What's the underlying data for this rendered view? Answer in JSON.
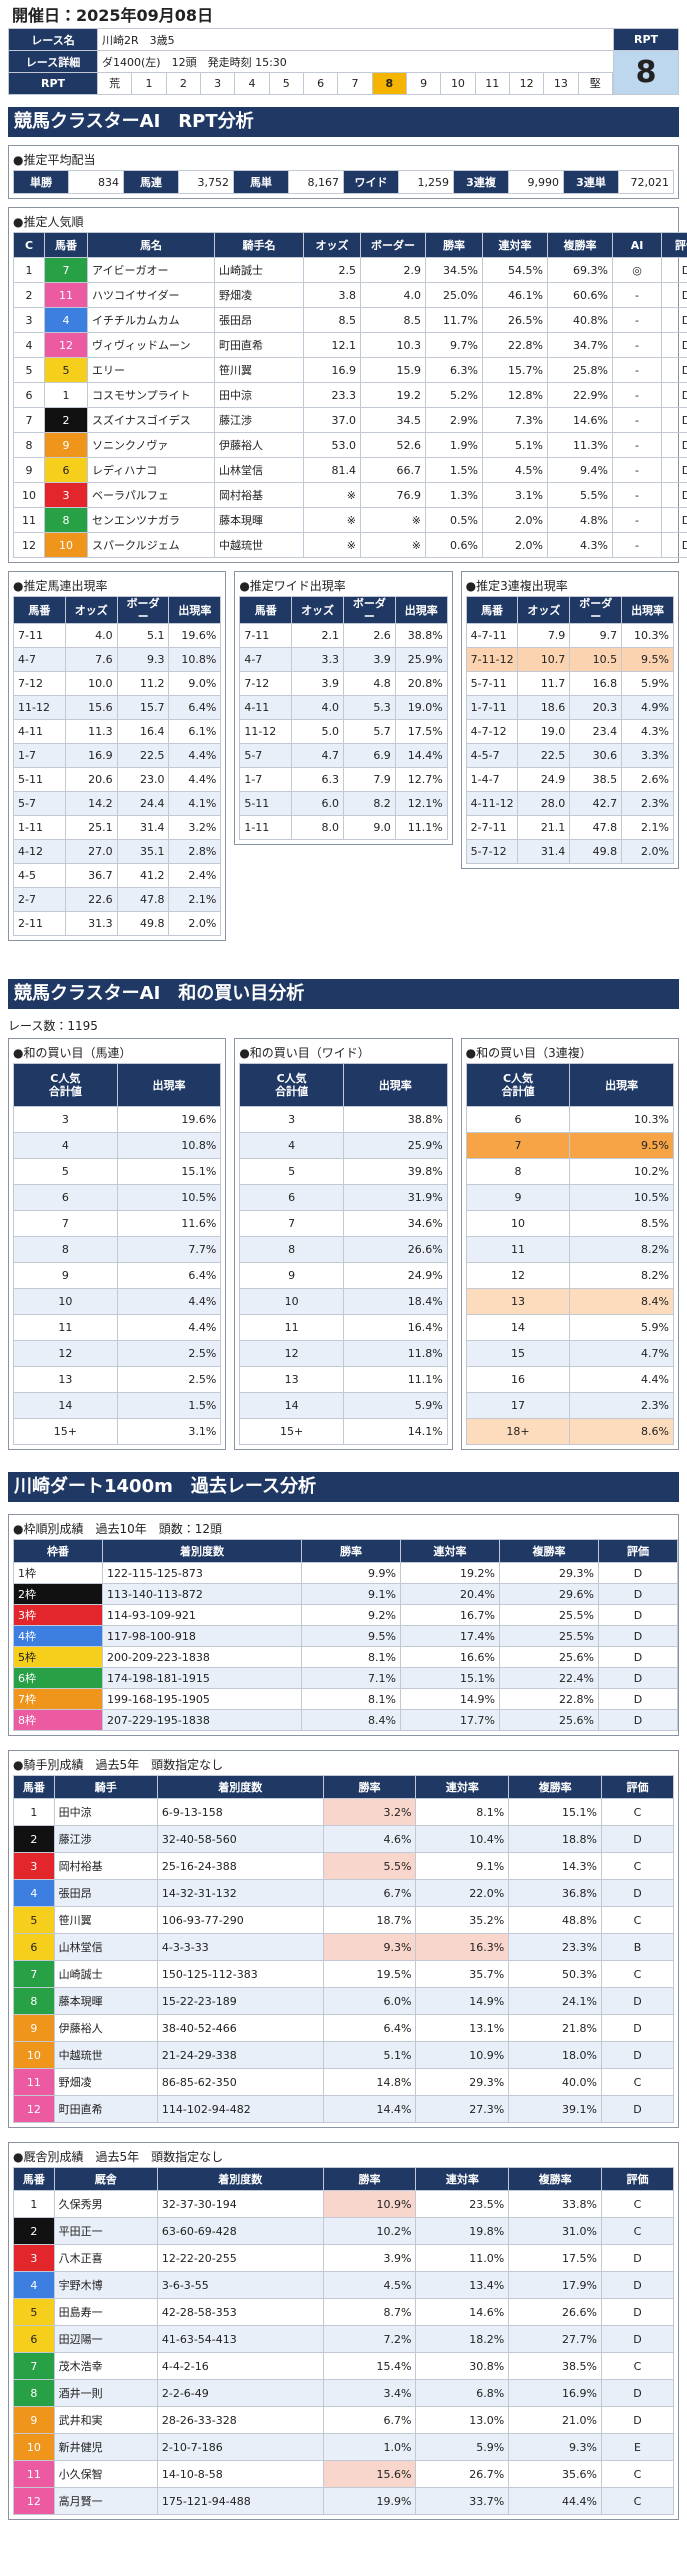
{
  "header": {
    "title": "開催日：2025年09月08日"
  },
  "race_info": {
    "labels": [
      "レース名",
      "レース詳細",
      "RPT"
    ],
    "race_name": "川崎2R　3歳5",
    "race_detail": "ダ1400(左)　12頭　発走時刻 15:30",
    "rpt_title": "RPT",
    "rpt_value": 8,
    "rpt_scale": [
      "荒",
      1,
      2,
      3,
      4,
      5,
      6,
      7,
      8,
      9,
      10,
      11,
      12,
      13,
      "堅"
    ]
  },
  "frame_colors": [
    "#ffffff",
    "#111111",
    "#e3262b",
    "#3d7fe0",
    "#f5cf1b",
    "#27a046",
    "#f0951c",
    "#ec5aa2"
  ],
  "rpt_analysis": {
    "title": "競馬クラスターAI　RPT分析",
    "payout": {
      "title": "●推定平均配当",
      "items": [
        {
          "label": "単勝",
          "value": "834"
        },
        {
          "label": "馬連",
          "value": "3,752"
        },
        {
          "label": "馬単",
          "value": "8,167"
        },
        {
          "label": "ワイド",
          "value": "1,259"
        },
        {
          "label": "3連複",
          "value": "9,990"
        },
        {
          "label": "3連単",
          "value": "72,021"
        }
      ]
    },
    "popularity": {
      "title": "●推定人気順",
      "columns": [
        "C",
        "馬番",
        "馬名",
        "騎手名",
        "オッズ",
        "ボーダー",
        "勝率",
        "連対率",
        "複勝率",
        "AI",
        "評価"
      ],
      "rows": [
        [
          1,
          7,
          "アイビーガオー",
          "山崎誠士",
          "2.5",
          "2.9",
          "34.5%",
          "54.5%",
          "69.3%",
          "◎",
          "D"
        ],
        [
          2,
          11,
          "ハツコイサイダー",
          "野畑凌",
          "3.8",
          "4.0",
          "25.0%",
          "46.1%",
          "60.6%",
          "-",
          "D"
        ],
        [
          3,
          4,
          "イチチルカムカム",
          "張田昂",
          "8.5",
          "8.5",
          "11.7%",
          "26.5%",
          "40.8%",
          "-",
          "D"
        ],
        [
          4,
          12,
          "ヴィヴィッドムーン",
          "町田直希",
          "12.1",
          "10.3",
          "9.7%",
          "22.8%",
          "34.7%",
          "-",
          "D"
        ],
        [
          5,
          5,
          "エリー",
          "笹川翼",
          "16.9",
          "15.9",
          "6.3%",
          "15.7%",
          "25.8%",
          "-",
          "D"
        ],
        [
          6,
          1,
          "コスモサンプライト",
          "田中涼",
          "23.3",
          "19.2",
          "5.2%",
          "12.8%",
          "22.9%",
          "-",
          "D"
        ],
        [
          7,
          2,
          "スズイナスゴイデス",
          "藤江渉",
          "37.0",
          "34.5",
          "2.9%",
          "7.3%",
          "14.6%",
          "-",
          "D"
        ],
        [
          8,
          9,
          "ソニンクノヴァ",
          "伊藤裕人",
          "53.0",
          "52.6",
          "1.9%",
          "5.1%",
          "11.3%",
          "-",
          "D"
        ],
        [
          9,
          6,
          "レディハナコ",
          "山林堂信",
          "81.4",
          "66.7",
          "1.5%",
          "4.5%",
          "9.4%",
          "-",
          "D"
        ],
        [
          10,
          3,
          "ベーラパルフェ",
          "岡村裕基",
          "※",
          "76.9",
          "1.3%",
          "3.1%",
          "5.5%",
          "-",
          "D"
        ],
        [
          11,
          8,
          "センエンツナガラ",
          "藤本現暉",
          "※",
          "※",
          "0.5%",
          "2.0%",
          "4.8%",
          "-",
          "D"
        ],
        [
          12,
          10,
          "スパークルジェム",
          "中越琉世",
          "※",
          "※",
          "0.6%",
          "2.0%",
          "4.3%",
          "-",
          "D"
        ]
      ]
    },
    "umaren": {
      "title": "●推定馬連出現率",
      "columns": [
        "馬番",
        "オッズ",
        "ボーダー",
        "出現率"
      ],
      "rows": [
        [
          "7-11",
          "4.0",
          "5.1",
          "19.6%"
        ],
        [
          "4-7",
          "7.6",
          "9.3",
          "10.8%"
        ],
        [
          "7-12",
          "10.0",
          "11.2",
          "9.0%"
        ],
        [
          "11-12",
          "15.6",
          "15.7",
          "6.4%"
        ],
        [
          "4-11",
          "11.3",
          "16.4",
          "6.1%"
        ],
        [
          "1-7",
          "16.9",
          "22.5",
          "4.4%"
        ],
        [
          "5-11",
          "20.6",
          "23.0",
          "4.4%"
        ],
        [
          "5-7",
          "14.2",
          "24.4",
          "4.1%"
        ],
        [
          "1-11",
          "25.1",
          "31.4",
          "3.2%"
        ],
        [
          "4-12",
          "27.0",
          "35.1",
          "2.8%"
        ],
        [
          "4-5",
          "36.7",
          "41.2",
          "2.4%"
        ],
        [
          "2-7",
          "22.6",
          "47.8",
          "2.1%"
        ],
        [
          "2-11",
          "31.3",
          "49.8",
          "2.0%"
        ]
      ]
    },
    "wide": {
      "title": "●推定ワイド出現率",
      "columns": [
        "馬番",
        "オッズ",
        "ボーダー",
        "出現率"
      ],
      "rows": [
        [
          "7-11",
          "2.1",
          "2.6",
          "38.8%"
        ],
        [
          "4-7",
          "3.3",
          "3.9",
          "25.9%"
        ],
        [
          "7-12",
          "3.9",
          "4.8",
          "20.8%"
        ],
        [
          "4-11",
          "4.0",
          "5.3",
          "19.0%"
        ],
        [
          "11-12",
          "5.0",
          "5.7",
          "17.5%"
        ],
        [
          "5-7",
          "4.7",
          "6.9",
          "14.4%"
        ],
        [
          "1-7",
          "6.3",
          "7.9",
          "12.7%"
        ],
        [
          "5-11",
          "6.0",
          "8.2",
          "12.1%"
        ],
        [
          "1-11",
          "8.0",
          "9.0",
          "11.1%"
        ]
      ]
    },
    "sanrenpuku": {
      "title": "●推定3連複出現率",
      "columns": [
        "馬番",
        "オッズ",
        "ボーダー",
        "出現率"
      ],
      "rows": [
        [
          "4-7-11",
          "7.9",
          "9.7",
          "10.3%"
        ],
        [
          "7-11-12",
          "10.7",
          "10.5",
          "9.5%"
        ],
        [
          "5-7-11",
          "11.7",
          "16.8",
          "5.9%"
        ],
        [
          "1-7-11",
          "18.6",
          "20.3",
          "4.9%"
        ],
        [
          "4-7-12",
          "19.0",
          "23.4",
          "4.3%"
        ],
        [
          "4-5-7",
          "22.5",
          "30.6",
          "3.3%"
        ],
        [
          "1-4-7",
          "24.9",
          "38.5",
          "2.6%"
        ],
        [
          "4-11-12",
          "28.0",
          "42.7",
          "2.3%"
        ],
        [
          "2-7-11",
          "21.1",
          "47.8",
          "2.1%"
        ],
        [
          "5-7-12",
          "31.4",
          "49.8",
          "2.0%"
        ]
      ],
      "highlights": [
        [
          1,
          0,
          "#fbd3b0"
        ],
        [
          1,
          1,
          "#fbd3b0"
        ],
        [
          1,
          2,
          "#fbd3b0"
        ],
        [
          1,
          3,
          "#fbd3b0"
        ]
      ]
    }
  },
  "sum_analysis": {
    "title": "競馬クラスターAI　和の買い目分析",
    "race_count": "レース数：1195",
    "tables": [
      {
        "title": "●和の買い目（馬連）",
        "columns": [
          "C人気\n合計値",
          "出現率"
        ],
        "rows": [
          [
            "3",
            "19.6%"
          ],
          [
            "4",
            "10.8%"
          ],
          [
            "5",
            "15.1%"
          ],
          [
            "6",
            "10.5%"
          ],
          [
            "7",
            "11.6%"
          ],
          [
            "8",
            "7.7%"
          ],
          [
            "9",
            "6.4%"
          ],
          [
            "10",
            "4.4%"
          ],
          [
            "11",
            "4.4%"
          ],
          [
            "12",
            "2.5%"
          ],
          [
            "13",
            "2.5%"
          ],
          [
            "14",
            "1.5%"
          ],
          [
            "15+",
            "3.1%"
          ]
        ]
      },
      {
        "title": "●和の買い目（ワイド）",
        "columns": [
          "C人気\n合計値",
          "出現率"
        ],
        "rows": [
          [
            "3",
            "38.8%"
          ],
          [
            "4",
            "25.9%"
          ],
          [
            "5",
            "39.8%"
          ],
          [
            "6",
            "31.9%"
          ],
          [
            "7",
            "34.6%"
          ],
          [
            "8",
            "26.6%"
          ],
          [
            "9",
            "24.9%"
          ],
          [
            "10",
            "18.4%"
          ],
          [
            "11",
            "16.4%"
          ],
          [
            "12",
            "11.8%"
          ],
          [
            "13",
            "11.1%"
          ],
          [
            "14",
            "5.9%"
          ],
          [
            "15+",
            "14.1%"
          ]
        ]
      },
      {
        "title": "●和の買い目（3連複）",
        "columns": [
          "C人気\n合計値",
          "出現率"
        ],
        "rows": [
          [
            "6",
            "10.3%"
          ],
          [
            "7",
            "9.5%"
          ],
          [
            "8",
            "10.2%"
          ],
          [
            "9",
            "10.5%"
          ],
          [
            "10",
            "8.5%"
          ],
          [
            "11",
            "8.2%"
          ],
          [
            "12",
            "8.2%"
          ],
          [
            "13",
            "8.4%"
          ],
          [
            "14",
            "5.9%"
          ],
          [
            "15",
            "4.7%"
          ],
          [
            "16",
            "4.4%"
          ],
          [
            "17",
            "2.3%"
          ],
          [
            "18+",
            "8.6%"
          ]
        ],
        "highlights": [
          [
            1,
            0,
            "#f7a446"
          ],
          [
            1,
            1,
            "#f7a446"
          ],
          [
            7,
            0,
            "#fcdcbc"
          ],
          [
            7,
            1,
            "#fcdcbc"
          ],
          [
            12,
            0,
            "#fcdcbc"
          ],
          [
            12,
            1,
            "#fcdcbc"
          ]
        ]
      }
    ]
  },
  "past_analysis": {
    "title": "川崎ダート1400m　過去レース分析",
    "waku": {
      "title": "●枠順別成績　過去10年　頭数：12頭",
      "columns": [
        "枠番",
        "着別度数",
        "勝率",
        "連対率",
        "複勝率",
        "評価"
      ],
      "rows": [
        [
          "1枠",
          "122-115-125-873",
          "9.9%",
          "19.2%",
          "29.3%",
          "D"
        ],
        [
          "2枠",
          "113-140-113-872",
          "9.1%",
          "20.4%",
          "29.6%",
          "D"
        ],
        [
          "3枠",
          "114-93-109-921",
          "9.2%",
          "16.7%",
          "25.5%",
          "D"
        ],
        [
          "4枠",
          "117-98-100-918",
          "9.5%",
          "17.4%",
          "25.5%",
          "D"
        ],
        [
          "5枠",
          "200-209-223-1838",
          "8.1%",
          "16.6%",
          "25.6%",
          "D"
        ],
        [
          "6枠",
          "174-198-181-1915",
          "7.1%",
          "15.1%",
          "22.4%",
          "D"
        ],
        [
          "7枠",
          "199-168-195-1905",
          "8.1%",
          "14.9%",
          "22.8%",
          "D"
        ],
        [
          "8枠",
          "207-229-195-1838",
          "8.4%",
          "17.7%",
          "25.6%",
          "D"
        ]
      ]
    },
    "jockey": {
      "title": "●騎手別成績　過去5年　頭数指定なし",
      "columns": [
        "馬番",
        "騎手",
        "着別度数",
        "勝率",
        "連対率",
        "複勝率",
        "評価"
      ],
      "rows": [
        [
          1,
          "田中涼",
          "6-9-13-158",
          "3.2%",
          "8.1%",
          "15.1%",
          "C"
        ],
        [
          2,
          "藤江渉",
          "32-40-58-560",
          "4.6%",
          "10.4%",
          "18.8%",
          "D"
        ],
        [
          3,
          "岡村裕基",
          "25-16-24-388",
          "5.5%",
          "9.1%",
          "14.3%",
          "C"
        ],
        [
          4,
          "張田昂",
          "14-32-31-132",
          "6.7%",
          "22.0%",
          "36.8%",
          "D"
        ],
        [
          5,
          "笹川翼",
          "106-93-77-290",
          "18.7%",
          "35.2%",
          "48.8%",
          "C"
        ],
        [
          6,
          "山林堂信",
          "4-3-3-33",
          "9.3%",
          "16.3%",
          "23.3%",
          "B"
        ],
        [
          7,
          "山崎誠士",
          "150-125-112-383",
          "19.5%",
          "35.7%",
          "50.3%",
          "C"
        ],
        [
          8,
          "藤本現暉",
          "15-22-23-189",
          "6.0%",
          "14.9%",
          "24.1%",
          "D"
        ],
        [
          9,
          "伊藤裕人",
          "38-40-52-466",
          "6.4%",
          "13.1%",
          "21.8%",
          "D"
        ],
        [
          10,
          "中越琉世",
          "21-24-29-338",
          "5.1%",
          "10.9%",
          "18.0%",
          "D"
        ],
        [
          11,
          "野畑凌",
          "86-85-62-350",
          "14.8%",
          "29.3%",
          "40.0%",
          "C"
        ],
        [
          12,
          "町田直希",
          "114-102-94-482",
          "14.4%",
          "27.3%",
          "39.1%",
          "D"
        ]
      ],
      "highlights": [
        [
          0,
          3,
          "#f9d6cb"
        ],
        [
          2,
          3,
          "#f9d6cb"
        ],
        [
          5,
          3,
          "#f9d6cb"
        ],
        [
          5,
          4,
          "#f9d6cb"
        ]
      ]
    },
    "trainer": {
      "title": "●厩舎別成績　過去5年　頭数指定なし",
      "columns": [
        "馬番",
        "厩舎",
        "着別度数",
        "勝率",
        "連対率",
        "複勝率",
        "評価"
      ],
      "rows": [
        [
          1,
          "久保秀男",
          "32-37-30-194",
          "10.9%",
          "23.5%",
          "33.8%",
          "C"
        ],
        [
          2,
          "平田正一",
          "63-60-69-428",
          "10.2%",
          "19.8%",
          "31.0%",
          "C"
        ],
        [
          3,
          "八木正喜",
          "12-22-20-255",
          "3.9%",
          "11.0%",
          "17.5%",
          "D"
        ],
        [
          4,
          "宇野木博",
          "3-6-3-55",
          "4.5%",
          "13.4%",
          "17.9%",
          "D"
        ],
        [
          5,
          "田島寿一",
          "42-28-58-353",
          "8.7%",
          "14.6%",
          "26.6%",
          "D"
        ],
        [
          6,
          "田辺陽一",
          "41-63-54-413",
          "7.2%",
          "18.2%",
          "27.7%",
          "D"
        ],
        [
          7,
          "茂木浩幸",
          "4-4-2-16",
          "15.4%",
          "30.8%",
          "38.5%",
          "C"
        ],
        [
          8,
          "酒井一則",
          "2-2-6-49",
          "3.4%",
          "6.8%",
          "16.9%",
          "D"
        ],
        [
          9,
          "武井和実",
          "28-26-33-328",
          "6.7%",
          "13.0%",
          "21.0%",
          "D"
        ],
        [
          10,
          "新井健児",
          "2-10-7-186",
          "1.0%",
          "5.9%",
          "9.3%",
          "E"
        ],
        [
          11,
          "小久保智",
          "14-10-8-58",
          "15.6%",
          "26.7%",
          "35.6%",
          "C"
        ],
        [
          12,
          "高月賢一",
          "175-121-94-488",
          "19.9%",
          "33.7%",
          "44.4%",
          "C"
        ]
      ],
      "highlights": [
        [
          0,
          3,
          "#f9d6cb"
        ],
        [
          10,
          3,
          "#f9d6cb"
        ]
      ]
    }
  }
}
